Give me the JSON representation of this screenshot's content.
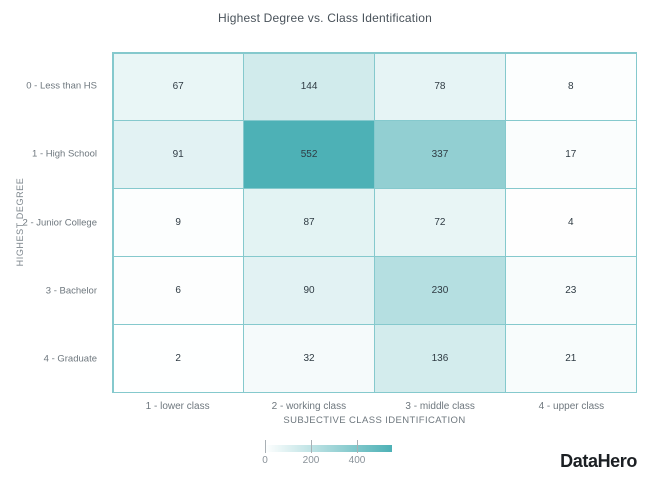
{
  "title": "Highest Degree vs. Class Identification",
  "chart_data": {
    "type": "heatmap",
    "title": "Highest Degree vs. Class Identification",
    "x_categories": [
      "1 - lower class",
      "2 - working class",
      "3 - middle class",
      "4 - upper class"
    ],
    "y_categories": [
      "0 - Less than HS",
      "1 - High School",
      "2 - Junior College",
      "3 - Bachelor",
      "4 - Graduate"
    ],
    "xlabel": "SUBJECTIVE CLASS IDENTIFICATION",
    "ylabel": "HIGHEST DEGREE",
    "values": [
      [
        67,
        144,
        78,
        8
      ],
      [
        91,
        552,
        337,
        17
      ],
      [
        9,
        87,
        72,
        4
      ],
      [
        6,
        90,
        230,
        23
      ],
      [
        2,
        32,
        136,
        21
      ]
    ],
    "scale_min": 0,
    "scale_max": 552,
    "legend_ticks": [
      0,
      200,
      400
    ],
    "legend_position": "bottom",
    "color_min": "#ffffff",
    "color_max": "#4db1b6",
    "grid": true
  },
  "colors": {
    "accent": "#4db1b6",
    "grid_line": "#85c9cd",
    "title_text": "#49525a",
    "axis_text": "#6e777e",
    "legend_text": "#8a9299",
    "value_text": "#2f3b43"
  },
  "branding": {
    "logo_text": "DataHero"
  }
}
